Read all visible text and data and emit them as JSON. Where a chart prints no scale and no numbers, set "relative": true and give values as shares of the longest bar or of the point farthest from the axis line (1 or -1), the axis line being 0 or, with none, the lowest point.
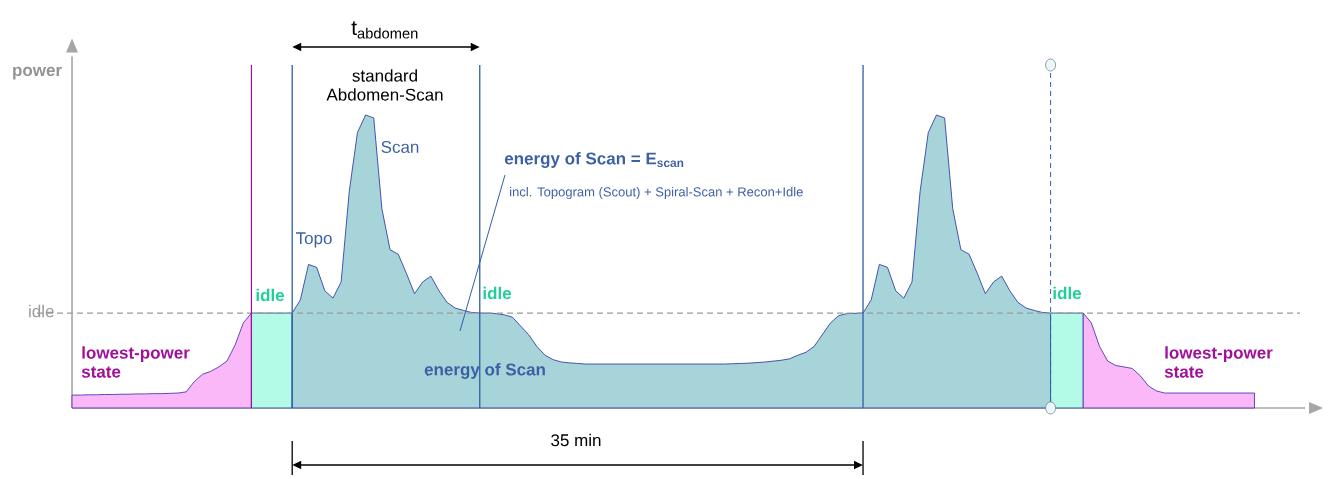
{
  "chart_data": {
    "type": "area",
    "relative": true,
    "ylabel": "power",
    "categories": [
      null,
      null,
      null,
      null,
      null,
      null,
      null,
      null,
      null,
      null,
      null,
      null,
      null,
      null,
      null,
      null,
      null,
      null,
      null,
      null,
      null,
      null,
      null,
      null,
      null,
      null,
      null,
      null,
      null,
      null,
      null,
      null,
      null,
      null,
      null,
      null,
      null,
      null,
      null,
      null,
      null,
      null,
      null,
      null,
      null,
      null,
      null,
      null,
      null,
      null,
      null,
      null,
      null,
      null,
      null,
      null,
      null,
      null,
      null,
      null,
      null,
      null,
      null,
      null,
      null,
      null,
      null,
      null,
      null,
      null,
      null,
      null,
      null,
      null,
      null,
      null,
      null,
      null,
      null,
      null,
      null,
      null,
      null,
      null,
      null,
      null,
      null,
      null,
      null,
      null,
      null,
      null,
      null,
      null,
      null,
      null,
      null,
      null,
      null,
      null,
      null,
      null,
      null,
      null,
      null,
      null,
      null,
      null,
      null,
      null,
      null,
      null,
      null,
      null,
      null,
      null,
      null,
      null,
      null,
      null,
      null,
      null,
      null,
      null,
      null,
      null,
      null,
      null,
      null,
      null,
      null,
      null,
      null,
      null,
      null,
      null,
      null,
      null,
      null,
      null,
      null,
      null,
      null,
      null,
      null,
      null
    ],
    "series": [
      {
        "color": "#fbb8f8",
        "values": [
          0.044,
          0.044,
          0.045,
          0.045,
          0.046,
          0.046,
          0.047,
          0.047,
          0.048,
          0.048,
          0.049,
          0.049,
          0.05,
          0.051,
          0.055,
          0.09,
          0.115,
          0.125,
          0.14,
          0.16,
          0.215,
          0.29,
          0.324,
          null,
          null,
          null,
          null,
          null,
          null,
          null,
          null,
          null,
          null,
          null,
          null,
          null,
          null,
          null,
          null,
          null,
          null,
          null,
          null,
          null,
          null,
          null,
          null,
          null,
          null,
          null,
          null,
          null,
          null,
          null,
          null,
          null,
          null,
          null,
          null,
          null,
          null,
          null,
          null,
          null,
          null,
          null,
          null,
          null,
          null,
          null,
          null,
          null,
          null,
          null,
          null,
          null,
          null,
          null,
          null,
          null,
          null,
          null,
          null,
          null,
          null,
          null,
          null,
          null,
          null,
          null,
          null,
          null,
          null,
          null,
          null,
          null,
          null,
          null,
          null,
          null,
          null,
          null,
          null,
          null,
          null,
          null,
          null,
          null,
          null,
          null,
          null,
          null,
          null,
          null,
          null,
          null,
          null,
          null,
          null,
          null,
          null,
          null,
          null,
          null,
          null,
          null,
          null,
          null,
          null,
          null,
          null,
          null,
          null,
          null,
          null,
          null,
          null,
          null,
          null,
          null,
          null,
          null,
          null,
          null,
          null,
          null
        ]
      },
      {
        "color": "#b3fbe6",
        "values": [
          null,
          null,
          null,
          null,
          null,
          null,
          null,
          null,
          null,
          null,
          null,
          null,
          null,
          null,
          null,
          null,
          null,
          null,
          null,
          null,
          null,
          null,
          0.324,
          0.324,
          0.324,
          0.324,
          0.324,
          0.324,
          null,
          null,
          null,
          null,
          null,
          null,
          null,
          null,
          null,
          null,
          null,
          null,
          null,
          null,
          null,
          null,
          null,
          null,
          null,
          null,
          null,
          null,
          null,
          null,
          null,
          null,
          null,
          null,
          null,
          null,
          null,
          null,
          null,
          null,
          null,
          null,
          null,
          null,
          null,
          null,
          null,
          null,
          null,
          null,
          null,
          null,
          null,
          null,
          null,
          null,
          null,
          null,
          null,
          null,
          null,
          null,
          null,
          null,
          null,
          null,
          null,
          null,
          null,
          null,
          null,
          null,
          null,
          null,
          null,
          null,
          null,
          null,
          null,
          null,
          null,
          null,
          null,
          null,
          null,
          null,
          null,
          null,
          null,
          null,
          null,
          null,
          null,
          null,
          null,
          null,
          null,
          null,
          null,
          null,
          null,
          null,
          null,
          null,
          null,
          null,
          null,
          null,
          null,
          null,
          null,
          null,
          null,
          null,
          null,
          null,
          null,
          null,
          null,
          null,
          null,
          null,
          null,
          null
        ]
      },
      {
        "color": "#a6d4d9",
        "values": [
          null,
          null,
          null,
          null,
          null,
          null,
          null,
          null,
          null,
          null,
          null,
          null,
          null,
          null,
          null,
          null,
          null,
          null,
          null,
          null,
          null,
          null,
          null,
          null,
          null,
          null,
          null,
          0.324,
          0.369,
          0.49,
          0.48,
          0.4,
          0.375,
          0.43,
          0.74,
          0.94,
          1.0,
          0.99,
          0.68,
          0.54,
          0.525,
          0.46,
          0.39,
          0.43,
          0.45,
          0.4,
          0.36,
          0.341,
          0.333,
          0.326,
          0.324,
          0.324,
          0.322,
          0.318,
          0.31,
          0.28,
          0.25,
          0.21,
          0.18,
          0.165,
          0.157,
          0.154,
          0.152,
          0.15,
          0.15,
          0.15,
          0.15,
          0.15,
          0.15,
          0.15,
          0.15,
          0.15,
          0.15,
          0.15,
          0.15,
          0.15,
          0.15,
          0.15,
          0.15,
          0.15,
          0.15,
          0.151,
          0.152,
          0.153,
          0.155,
          0.157,
          0.16,
          0.163,
          0.168,
          0.18,
          0.19,
          0.21,
          0.25,
          0.29,
          0.315,
          0.322,
          0.323,
          0.324,
          0.369,
          0.49,
          0.48,
          0.4,
          0.375,
          0.43,
          0.74,
          0.94,
          1.0,
          0.99,
          0.68,
          0.54,
          0.525,
          0.46,
          0.39,
          0.43,
          0.45,
          0.4,
          0.36,
          0.341,
          0.333,
          0.326,
          0.324,
          null,
          null,
          null,
          null,
          null,
          null,
          null,
          null,
          null,
          null,
          null,
          null,
          null,
          null,
          null,
          null,
          null,
          null,
          null,
          null,
          null,
          null,
          null,
          null,
          null
        ]
      },
      {
        "color": "#b3fbe6",
        "values": [
          null,
          null,
          null,
          null,
          null,
          null,
          null,
          null,
          null,
          null,
          null,
          null,
          null,
          null,
          null,
          null,
          null,
          null,
          null,
          null,
          null,
          null,
          null,
          null,
          null,
          null,
          null,
          null,
          null,
          null,
          null,
          null,
          null,
          null,
          null,
          null,
          null,
          null,
          null,
          null,
          null,
          null,
          null,
          null,
          null,
          null,
          null,
          null,
          null,
          null,
          null,
          null,
          null,
          null,
          null,
          null,
          null,
          null,
          null,
          null,
          null,
          null,
          null,
          null,
          null,
          null,
          null,
          null,
          null,
          null,
          null,
          null,
          null,
          null,
          null,
          null,
          null,
          null,
          null,
          null,
          null,
          null,
          null,
          null,
          null,
          null,
          null,
          null,
          null,
          null,
          null,
          null,
          null,
          null,
          null,
          null,
          null,
          null,
          null,
          null,
          null,
          null,
          null,
          null,
          null,
          null,
          null,
          null,
          null,
          null,
          null,
          null,
          null,
          null,
          null,
          null,
          null,
          null,
          null,
          null,
          0.324,
          0.324,
          0.324,
          0.324,
          0.324,
          null,
          null,
          null,
          null,
          null,
          null,
          null,
          null,
          null,
          null,
          null,
          null,
          null,
          null,
          null,
          null,
          null,
          null,
          null,
          null,
          null
        ]
      },
      {
        "color": "#fbb8f8",
        "values": [
          null,
          null,
          null,
          null,
          null,
          null,
          null,
          null,
          null,
          null,
          null,
          null,
          null,
          null,
          null,
          null,
          null,
          null,
          null,
          null,
          null,
          null,
          null,
          null,
          null,
          null,
          null,
          null,
          null,
          null,
          null,
          null,
          null,
          null,
          null,
          null,
          null,
          null,
          null,
          null,
          null,
          null,
          null,
          null,
          null,
          null,
          null,
          null,
          null,
          null,
          null,
          null,
          null,
          null,
          null,
          null,
          null,
          null,
          null,
          null,
          null,
          null,
          null,
          null,
          null,
          null,
          null,
          null,
          null,
          null,
          null,
          null,
          null,
          null,
          null,
          null,
          null,
          null,
          null,
          null,
          null,
          null,
          null,
          null,
          null,
          null,
          null,
          null,
          null,
          null,
          null,
          null,
          null,
          null,
          null,
          null,
          null,
          null,
          null,
          null,
          null,
          null,
          null,
          null,
          null,
          null,
          null,
          null,
          null,
          null,
          null,
          null,
          null,
          null,
          null,
          null,
          null,
          null,
          null,
          null,
          null,
          null,
          null,
          null,
          0.324,
          0.29,
          0.21,
          0.16,
          0.145,
          0.14,
          0.135,
          0.11,
          0.075,
          0.058,
          0.051,
          0.051,
          0.051,
          0.051,
          0.051,
          0.051,
          0.051,
          0.051,
          0.051,
          0.051,
          0.051,
          0.051
        ]
      }
    ],
    "ref_lines": [
      {
        "axis": "y",
        "value": 0.324,
        "label": "idle",
        "color": "#999999",
        "line_style": "dashed"
      }
    ],
    "annotations": [
      "t$_{abdomen}$",
      "standard Abdomen-Scan",
      "Topo",
      "Scan",
      "energy of Scan = E$_{scan}$",
      "incl. Topogram (Scout) + Spiral-Scan + Recon+Idle",
      "energy of Scan",
      "idle",
      "idle",
      "idle",
      "lowest-power state",
      "lowest-power state",
      "35 min"
    ]
  }
}
